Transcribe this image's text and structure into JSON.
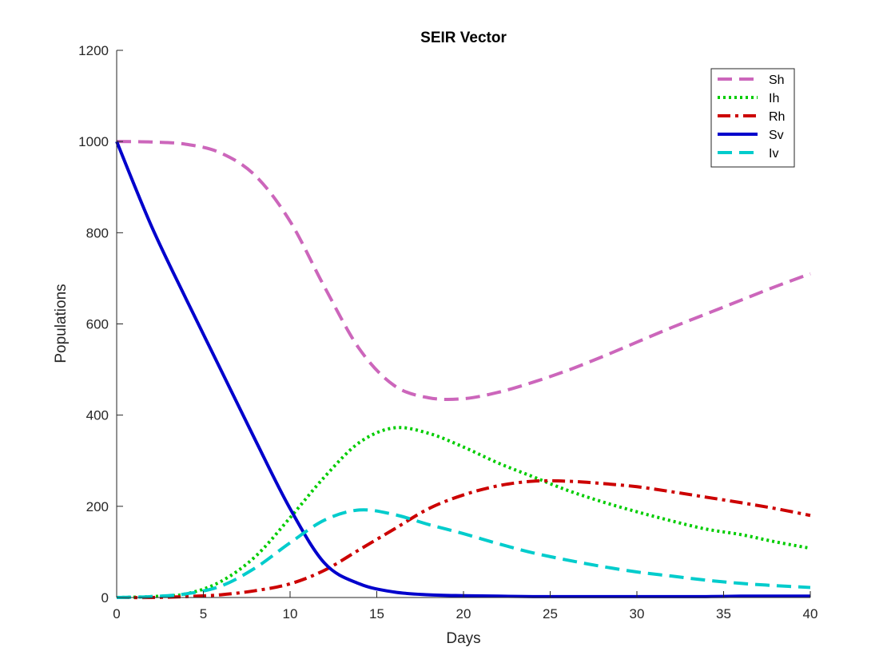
{
  "chart_data": {
    "type": "line",
    "title": "SEIR Vector",
    "xlabel": "Days",
    "ylabel": "Populations",
    "xlim": [
      0,
      40
    ],
    "ylim": [
      0,
      1200
    ],
    "xticks": [
      0,
      5,
      10,
      15,
      20,
      25,
      30,
      35,
      40
    ],
    "yticks": [
      0,
      200,
      400,
      600,
      800,
      1000,
      1200
    ],
    "grid": false,
    "legend_position": "top-right",
    "series": [
      {
        "name": "Sh",
        "color": "#cc66bb",
        "style": "dashed",
        "x": [
          0,
          2,
          4,
          6,
          8,
          10,
          12,
          14,
          16,
          18,
          20,
          22,
          24,
          26,
          28,
          30,
          32,
          34,
          36,
          38,
          40
        ],
        "y": [
          1000,
          999,
          994,
          975,
          925,
          825,
          680,
          545,
          465,
          438,
          436,
          450,
          472,
          498,
          528,
          560,
          592,
          622,
          652,
          682,
          710
        ]
      },
      {
        "name": "Ih",
        "color": "#00cc00",
        "style": "dotted",
        "x": [
          0,
          2,
          4,
          6,
          8,
          10,
          12,
          14,
          16,
          18,
          20,
          22,
          24,
          26,
          28,
          30,
          32,
          34,
          36,
          38,
          40
        ],
        "y": [
          0,
          2,
          8,
          35,
          90,
          175,
          265,
          340,
          372,
          360,
          330,
          295,
          265,
          235,
          210,
          188,
          168,
          150,
          138,
          122,
          108
        ]
      },
      {
        "name": "Rh",
        "color": "#cc0000",
        "style": "dashdot",
        "x": [
          0,
          2,
          4,
          6,
          8,
          10,
          12,
          14,
          16,
          18,
          20,
          22,
          24,
          26,
          28,
          30,
          32,
          34,
          36,
          38,
          40
        ],
        "y": [
          0,
          0,
          2,
          6,
          15,
          30,
          60,
          105,
          150,
          195,
          225,
          245,
          255,
          255,
          250,
          243,
          232,
          220,
          208,
          195,
          180
        ]
      },
      {
        "name": "Sv",
        "color": "#0000cc",
        "style": "solid",
        "x": [
          0,
          2,
          4,
          6,
          8,
          10,
          12,
          14,
          16,
          18,
          20,
          22,
          24,
          26,
          28,
          30,
          32,
          34,
          36,
          38,
          40
        ],
        "y": [
          1000,
          815,
          655,
          500,
          345,
          195,
          75,
          30,
          12,
          6,
          4,
          3,
          2,
          2,
          2,
          2,
          2,
          2,
          3,
          3,
          3
        ]
      },
      {
        "name": "Iv",
        "color": "#00cccc",
        "style": "dashed",
        "x": [
          0,
          2,
          4,
          6,
          8,
          10,
          12,
          14,
          16,
          18,
          20,
          22,
          24,
          26,
          28,
          30,
          32,
          34,
          36,
          38,
          40
        ],
        "y": [
          0,
          2,
          8,
          25,
          65,
          120,
          170,
          192,
          182,
          160,
          140,
          118,
          98,
          82,
          68,
          56,
          47,
          38,
          31,
          26,
          22
        ]
      }
    ]
  }
}
